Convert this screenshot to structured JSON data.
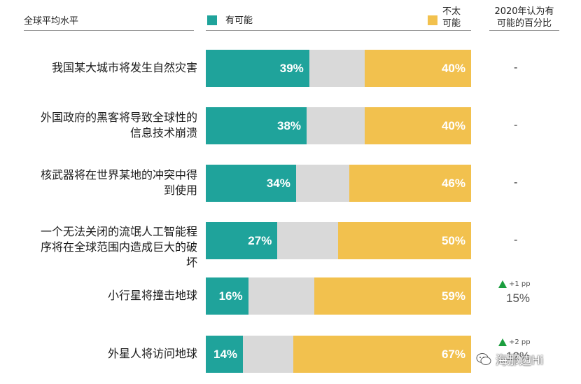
{
  "header": {
    "scope_label": "全球平均水平",
    "likely_label": "有可能",
    "unlikely_label_line1": "不太",
    "unlikely_label_line2": "可能",
    "col2020_line1": "2020年认为有",
    "col2020_line2": "可能的百分比"
  },
  "colors": {
    "likely": "#1fa39b",
    "neutral": "#d9d9d9",
    "unlikely": "#f2c14e",
    "change_arrow": "#1b9e3e"
  },
  "chart_data": {
    "type": "bar",
    "orientation": "horizontal-stacked",
    "series": [
      {
        "name": "有可能",
        "values": [
          39,
          38,
          34,
          27,
          16,
          14
        ]
      },
      {
        "name": "不太可能",
        "values": [
          40,
          40,
          46,
          50,
          59,
          67
        ]
      }
    ],
    "categories": [
      "我国某大城市将发生自然灾害",
      "外国政府的黑客将导致全球性的信息技术崩溃",
      "核武器将在世界某地的冲突中得到使用",
      "一个无法关闭的流氓人工智能程序将在全球范围内造成巨大的破坏",
      "小行星将撞击地球",
      "外星人将访问地球"
    ]
  },
  "rows": [
    {
      "label_lines": [
        "我国某大城市将发生自然灾害"
      ],
      "likely_text": "39%",
      "unlikely_text": "40%",
      "col2020": "-",
      "change": null,
      "pct2020": null
    },
    {
      "label_lines": [
        "外国政府的黑客将导致全球性的",
        "信息技术崩溃"
      ],
      "likely_text": "38%",
      "unlikely_text": "40%",
      "col2020": "-",
      "change": null,
      "pct2020": null
    },
    {
      "label_lines": [
        "核武器将在世界某地的冲突中得",
        "到使用"
      ],
      "likely_text": "34%",
      "unlikely_text": "46%",
      "col2020": "-",
      "change": null,
      "pct2020": null
    },
    {
      "label_lines": [
        "一个无法关闭的流氓人工智能程",
        "序将在全球范围内造成巨大的破",
        "坏"
      ],
      "likely_text": "27%",
      "unlikely_text": "50%",
      "col2020": "-",
      "change": null,
      "pct2020": null
    },
    {
      "label_lines": [
        "小行星将撞击地球"
      ],
      "likely_text": "16%",
      "unlikely_text": "59%",
      "col2020": null,
      "change": "+1 pp",
      "pct2020": "15%"
    },
    {
      "label_lines": [
        "外星人将访问地球"
      ],
      "likely_text": "14%",
      "unlikely_text": "67%",
      "col2020": null,
      "change": "+2 pp",
      "pct2020": "12%"
    }
  ],
  "watermark": {
    "icon": "wechat-icon",
    "text": "海那边Hi"
  }
}
